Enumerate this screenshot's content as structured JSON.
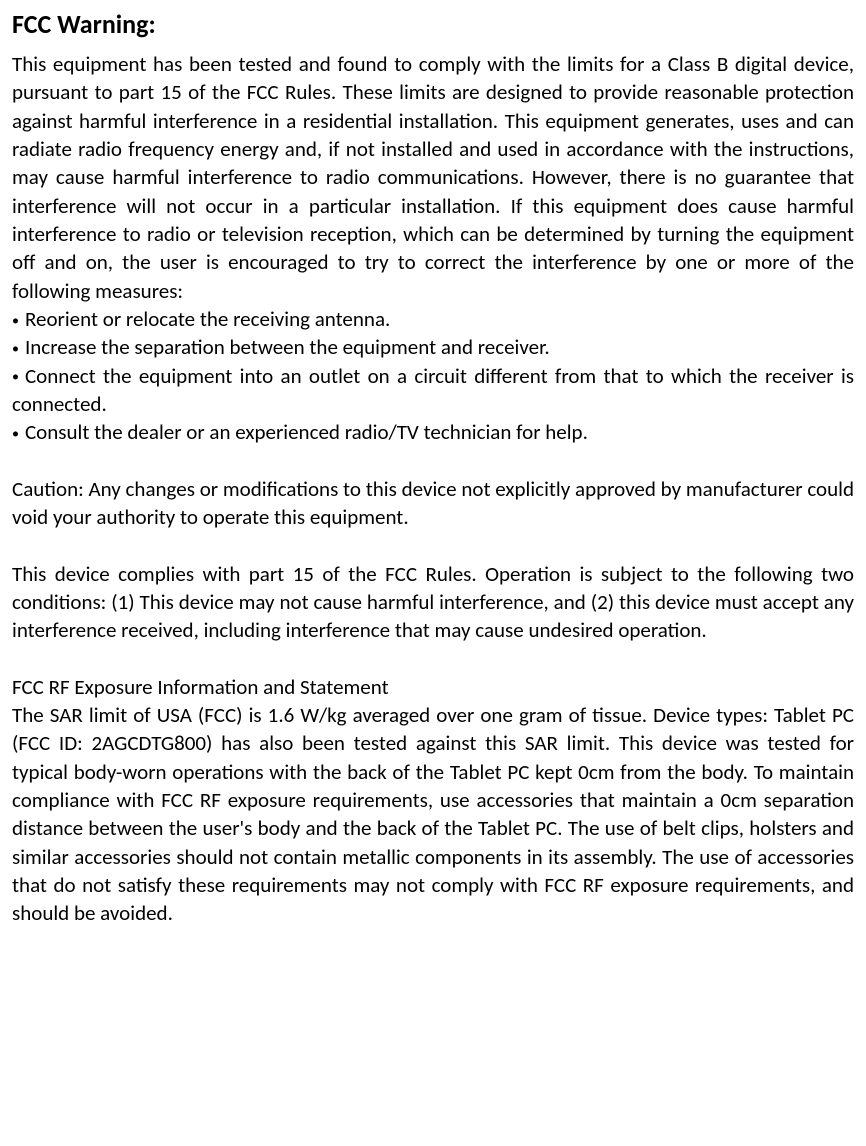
{
  "heading": "FCC Warning:",
  "para1": "This equipment has been tested and found to comply with the limits for a Class B digital device, pursuant to part 15 of the FCC Rules. These limits are designed to provide reasonable protection against harmful interference in a residential installation. This equipment generates, uses and can radiate radio frequency energy and, if not installed and used in accordance with the instructions, may cause harmful interference to radio communications. However, there is no guarantee that interference will not occur in a particular installation. If this equipment does cause harmful interference to radio or television reception, which can be determined by turning the equipment off and on, the user is encouraged to try to correct the interference by one or more of the following measures:",
  "bullets": [
    "Reorient or relocate the receiving antenna.",
    "Increase the separation between the equipment and receiver.",
    "Connect the equipment into an outlet on a circuit different from that to which the receiver is connected.",
    "Consult the dealer or an experienced radio/TV technician for help."
  ],
  "para2": "Caution: Any changes or modifications to this device not explicitly approved by manufacturer could void your authority to operate this equipment.",
  "para3": "This device complies with part 15 of the FCC Rules. Operation is subject to the following two conditions: (1) This device may not cause harmful interference, and (2) this device must accept any interference received, including interference that may cause undesired operation.",
  "subheading": "FCC RF Exposure Information and Statement",
  "para4": "The SAR limit of USA (FCC) is 1.6 W/kg averaged over one gram of tissue. Device types: Tablet PC (FCC ID: 2AGCDTG800) has also been tested against this SAR limit. This device was tested for typical body-worn operations with the back of the Tablet PC kept 0cm from the body. To maintain compliance with FCC RF exposure requirements, use accessories that maintain a 0cm separation distance between the user's body and the back of the Tablet PC. The use of belt clips, holsters and similar accessories should not contain metallic components in its assembly. The use of accessories that do not satisfy these requirements may not comply with FCC RF exposure requirements, and should be avoided.",
  "bullet_char": "•"
}
